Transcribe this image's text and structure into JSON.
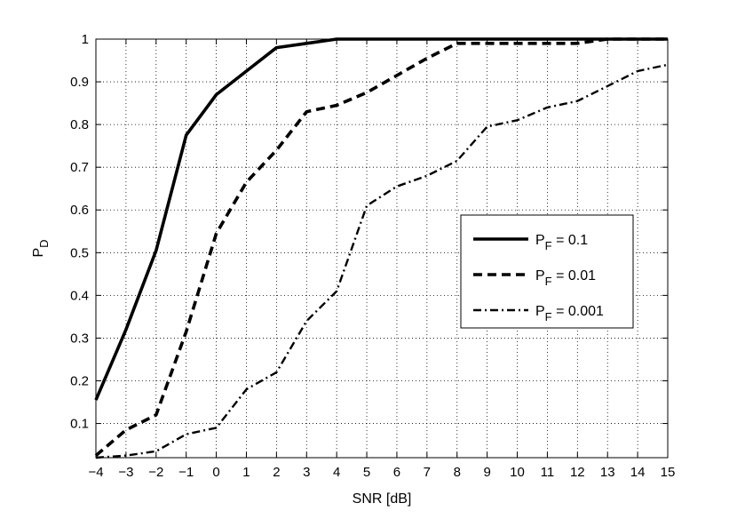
{
  "chart_data": {
    "type": "line",
    "xlabel": "SNR [dB]",
    "ylabel": {
      "main": "P",
      "sub": "D"
    },
    "xlim": [
      -4,
      15
    ],
    "ylim": [
      0.02,
      1
    ],
    "grid": true,
    "legend_position": "center-right",
    "x_ticks": [
      "-4",
      "-3",
      "-2",
      "-1",
      "0",
      "1",
      "2",
      "3",
      "4",
      "5",
      "6",
      "7",
      "8",
      "9",
      "10",
      "11",
      "12",
      "13",
      "14",
      "15"
    ],
    "y_ticks": [
      "0.1",
      "0.2",
      "0.3",
      "0.4",
      "0.5",
      "0.6",
      "0.7",
      "0.8",
      "0.9",
      "1"
    ],
    "series": [
      {
        "name_main": "P",
        "name_sub": "F",
        "name_rest": " = 0.1",
        "style": "solid",
        "x": [
          -4,
          -3,
          -2,
          -1,
          0,
          1,
          2,
          3,
          4,
          5,
          6,
          7,
          8,
          9,
          10,
          11,
          12,
          13,
          14,
          15
        ],
        "values": [
          0.155,
          0.32,
          0.505,
          0.775,
          0.87,
          0.925,
          0.98,
          0.99,
          1.0,
          1.0,
          1.0,
          1.0,
          1.0,
          1.0,
          1.0,
          1.0,
          1.0,
          1.0,
          1.0,
          1.0
        ]
      },
      {
        "name_main": "P",
        "name_sub": "F",
        "name_rest": " = 0.01",
        "style": "dashed",
        "x": [
          -4,
          -3,
          -2,
          -1,
          0,
          1,
          2,
          3,
          4,
          5,
          6,
          7,
          8,
          9,
          10,
          11,
          12,
          13,
          14,
          15
        ],
        "values": [
          0.025,
          0.085,
          0.12,
          0.315,
          0.545,
          0.665,
          0.74,
          0.83,
          0.845,
          0.875,
          0.915,
          0.955,
          0.99,
          0.99,
          0.99,
          0.99,
          0.99,
          1.0,
          1.0,
          1.0
        ]
      },
      {
        "name_main": "P",
        "name_sub": "F",
        "name_rest": " = 0.001",
        "style": "dashdot",
        "x": [
          -4,
          -3,
          -2,
          -1,
          0,
          1,
          2,
          3,
          4,
          5,
          6,
          7,
          8,
          9,
          10,
          11,
          12,
          13,
          14,
          15
        ],
        "values": [
          0.02,
          0.025,
          0.035,
          0.075,
          0.09,
          0.18,
          0.22,
          0.34,
          0.41,
          0.61,
          0.655,
          0.68,
          0.715,
          0.795,
          0.81,
          0.84,
          0.855,
          0.89,
          0.925,
          0.94
        ]
      }
    ]
  }
}
